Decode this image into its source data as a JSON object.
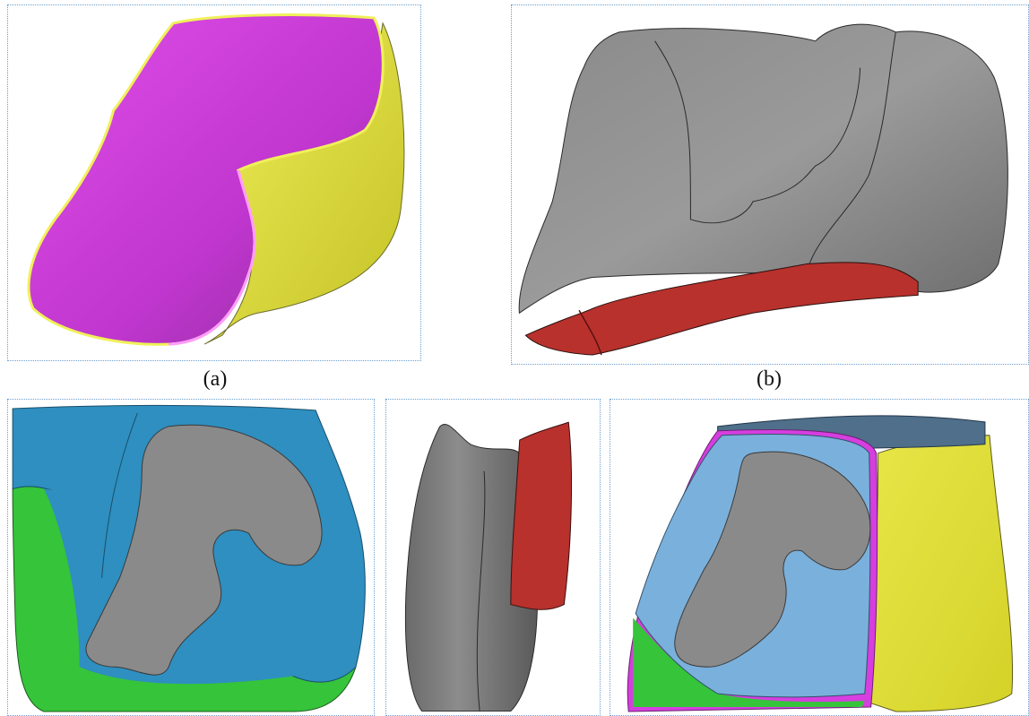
{
  "captions": {
    "a": "(a)",
    "b": "(b)"
  },
  "colors": {
    "magenta": "#d63ee0",
    "yellow": "#e3e03a",
    "grey": "#8a8a8a",
    "dark_red": "#b8312c",
    "blue": "#2e8fc0",
    "green": "#35c43a",
    "light_blue": "#7ab0dc",
    "border": "#6a9fd0"
  }
}
